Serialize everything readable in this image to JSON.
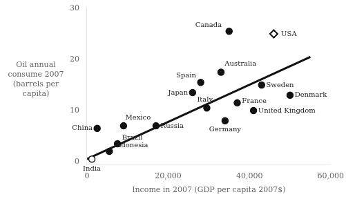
{
  "chart_data": {
    "type": "scatter",
    "xlabel": "Income in 2007 (GDP per capita 2007$)",
    "ylabel": [
      "Oil annual",
      "consume 2007",
      "(barrels per",
      "capita)"
    ],
    "xlim": [
      0,
      60000
    ],
    "ylim": [
      -0.5,
      30
    ],
    "xticks": [
      0,
      {
        "value": 20000,
        "label": "20,000"
      },
      {
        "value": 40000,
        "label": "40,000"
      },
      {
        "value": 60000,
        "label": "60,000"
      }
    ],
    "yticks": [
      0,
      10,
      20,
      30
    ],
    "grid": false,
    "series": [
      {
        "type": "line",
        "line_style": "solid",
        "color": "#111111",
        "x": [
          0,
          55000
        ],
        "values": [
          0.5,
          20.5
        ]
      },
      {
        "marker": "diamond_open",
        "color": "#111111",
        "x": [
          46000
        ],
        "values": [
          25.0
        ],
        "labels": [
          "USA"
        ]
      },
      {
        "marker": "circle",
        "color": "#111111",
        "x": [
          35000,
          33000,
          43000,
          28000,
          26000,
          50000,
          37000,
          29500,
          41000,
          34000,
          17000,
          9000,
          2500,
          7500,
          5500
        ],
        "values": [
          25.5,
          17.5,
          15.0,
          15.5,
          13.5,
          13.0,
          11.5,
          10.5,
          10.0,
          8.0,
          7.0,
          7.0,
          6.5,
          3.5,
          2.0
        ],
        "labels": [
          "Canada",
          "Australia",
          "Sweden",
          "Spain",
          "Japan",
          "Denmark",
          "France",
          "Italy",
          "United Kingdom",
          "Germany",
          "Russia",
          "Mexico",
          "China",
          "Brazil",
          "Indonesia"
        ]
      },
      {
        "marker": "circle_open",
        "color": "#111111",
        "x": [
          1200
        ],
        "values": [
          0.5
        ],
        "labels": [
          "India"
        ]
      }
    ]
  }
}
